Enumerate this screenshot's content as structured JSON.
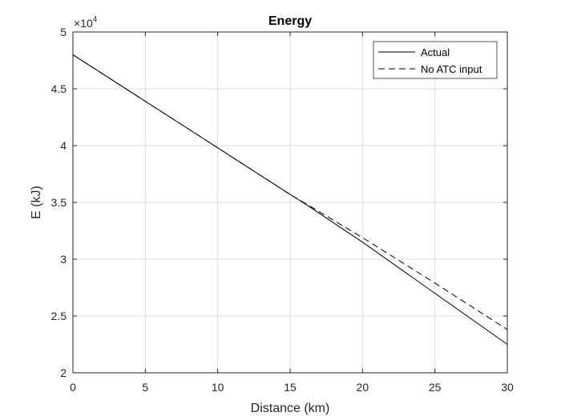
{
  "chart_data": {
    "type": "line",
    "title": "Energy",
    "xlabel": "Distance (km)",
    "ylabel": "E (kJ)",
    "xlim": [
      0,
      30
    ],
    "ylim": [
      20000,
      50000
    ],
    "xticks": [
      0,
      5,
      10,
      15,
      20,
      25,
      30
    ],
    "xtick_labels": [
      "0",
      "5",
      "10",
      "15",
      "20",
      "25",
      "30"
    ],
    "yticks": [
      20000,
      25000,
      30000,
      35000,
      40000,
      45000,
      50000
    ],
    "ytick_labels": [
      "2",
      "2.5",
      "3",
      "3.5",
      "4",
      "4.5",
      "5"
    ],
    "y_multiplier": "×10",
    "y_multiplier_exponent": "4",
    "grid": true,
    "legend_position": "top-right",
    "series": [
      {
        "name": "Actual",
        "style": "solid",
        "color": "#000000",
        "x": [
          0,
          5,
          10,
          15,
          16,
          20,
          25,
          30
        ],
        "y": [
          48000,
          43900,
          39800,
          35700,
          34900,
          31500,
          27000,
          22500
        ]
      },
      {
        "name": "No ATC input",
        "style": "dashed",
        "color": "#000000",
        "x": [
          0,
          5,
          10,
          15,
          16,
          20,
          25,
          30
        ],
        "y": [
          48000,
          43900,
          39800,
          35700,
          34950,
          31900,
          27900,
          23800
        ]
      }
    ]
  }
}
